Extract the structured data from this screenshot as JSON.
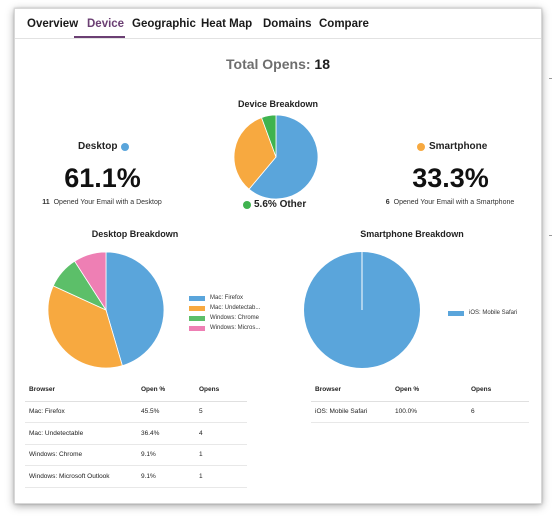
{
  "tabs": [
    "Overview",
    "Device",
    "Geographic",
    "Heat Map",
    "Domains",
    "Compare"
  ],
  "active_tab": "Device",
  "total": {
    "label": "Total Opens:",
    "value": "18"
  },
  "device_breakdown": {
    "title": "Device Breakdown",
    "desktop": {
      "label": "Desktop",
      "percent": "61.1%",
      "count": "11",
      "desc": "Opened Your Email with a Desktop",
      "color": "#5aa5db"
    },
    "smartphone": {
      "label": "Smartphone",
      "percent": "33.3%",
      "count": "6",
      "desc": "Opened Your Email with a Smartphone",
      "color": "#f7a940"
    },
    "other": {
      "label": "5.6% Other",
      "color": "#3fb34f"
    }
  },
  "desktop_breakdown": {
    "title": "Desktop Breakdown",
    "legend": [
      "Mac: Firefox",
      "Mac: Undetectab...",
      "Windows: Chrome",
      "Windows: Micros..."
    ],
    "table": {
      "headers": [
        "Browser",
        "Open %",
        "Opens"
      ],
      "rows": [
        [
          "Mac: Firefox",
          "45.5%",
          "5"
        ],
        [
          "Mac: Undetectable",
          "36.4%",
          "4"
        ],
        [
          "Windows: Chrome",
          "9.1%",
          "1"
        ],
        [
          "Windows: Microsoft Outlook",
          "9.1%",
          "1"
        ]
      ]
    }
  },
  "smartphone_breakdown": {
    "title": "Smartphone Breakdown",
    "legend": [
      "iOS: Mobile Safari"
    ],
    "table": {
      "headers": [
        "Browser",
        "Open %",
        "Opens"
      ],
      "rows": [
        [
          "iOS: Mobile Safari",
          "100.0%",
          "6"
        ]
      ]
    }
  },
  "chart_data": [
    {
      "type": "pie",
      "title": "Device Breakdown",
      "categories": [
        "Desktop",
        "Smartphone",
        "Other"
      ],
      "values": [
        61.1,
        33.3,
        5.6
      ],
      "colors": [
        "#5aa5db",
        "#f7a940",
        "#3fb34f"
      ]
    },
    {
      "type": "pie",
      "title": "Desktop Breakdown",
      "categories": [
        "Mac: Firefox",
        "Mac: Undetectable",
        "Windows: Chrome",
        "Windows: Microsoft Outlook"
      ],
      "values": [
        45.5,
        36.4,
        9.1,
        9.1
      ],
      "colors": [
        "#5aa5db",
        "#f7a940",
        "#5cbf69",
        "#ee7fb4"
      ]
    },
    {
      "type": "pie",
      "title": "Smartphone Breakdown",
      "categories": [
        "iOS: Mobile Safari"
      ],
      "values": [
        100.0
      ],
      "colors": [
        "#5aa5db"
      ]
    }
  ]
}
